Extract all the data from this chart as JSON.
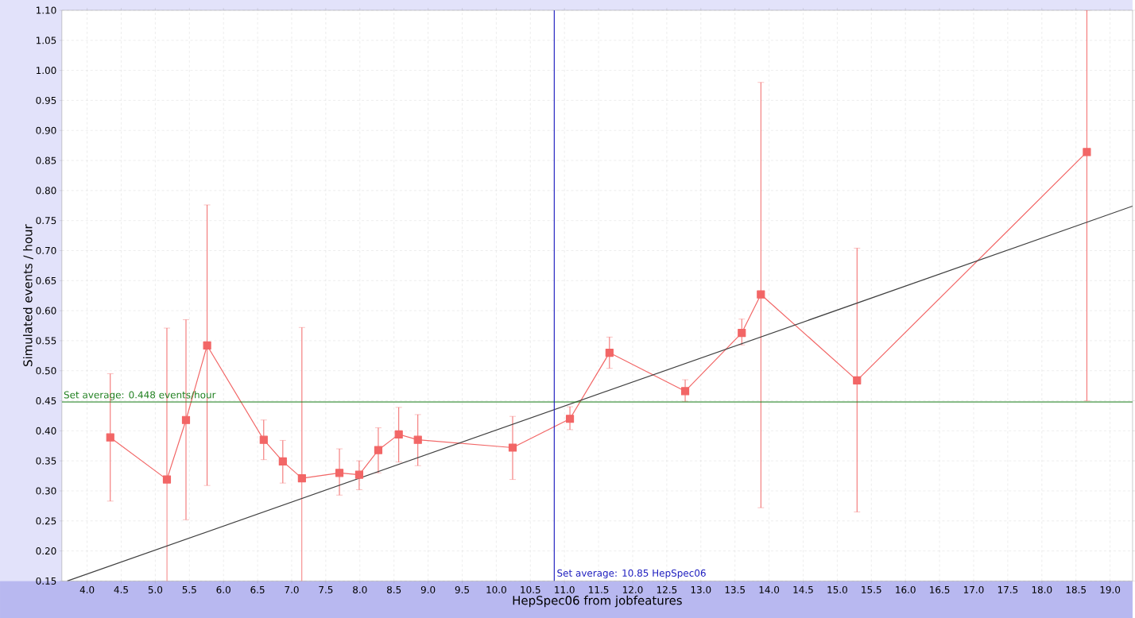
{
  "chart_data": {
    "type": "line",
    "xlabel": "HepSpec06 from jobfeatures",
    "ylabel": "Simulated events / hour",
    "xlim": [
      3.63,
      19.33
    ],
    "ylim": [
      0.15,
      1.1
    ],
    "xticks": [
      {
        "value": 4.0,
        "label": "4.0"
      },
      {
        "value": 4.5,
        "label": "4.5"
      },
      {
        "value": 5.0,
        "label": "5.0"
      },
      {
        "value": 5.5,
        "label": "5.5"
      },
      {
        "value": 6.0,
        "label": "6.0"
      },
      {
        "value": 6.5,
        "label": "6.5"
      },
      {
        "value": 7.0,
        "label": "7.0"
      },
      {
        "value": 7.5,
        "label": "7.5"
      },
      {
        "value": 8.0,
        "label": "8.0"
      },
      {
        "value": 8.5,
        "label": "8.5"
      },
      {
        "value": 9.0,
        "label": "9.0"
      },
      {
        "value": 9.5,
        "label": "9.5"
      },
      {
        "value": 10.0,
        "label": "10.0"
      },
      {
        "value": 10.5,
        "label": "10.5"
      },
      {
        "value": 11.0,
        "label": "11.0"
      },
      {
        "value": 11.5,
        "label": "11.5"
      },
      {
        "value": 12.0,
        "label": "12.0"
      },
      {
        "value": 12.5,
        "label": "12.5"
      },
      {
        "value": 13.0,
        "label": "13.0"
      },
      {
        "value": 13.5,
        "label": "13.5"
      },
      {
        "value": 14.0,
        "label": "14.0"
      },
      {
        "value": 14.5,
        "label": "14.5"
      },
      {
        "value": 15.0,
        "label": "15.0"
      },
      {
        "value": 15.5,
        "label": "15.5"
      },
      {
        "value": 16.0,
        "label": "16.0"
      },
      {
        "value": 16.5,
        "label": "16.5"
      },
      {
        "value": 17.0,
        "label": "17.0"
      },
      {
        "value": 17.5,
        "label": "17.5"
      },
      {
        "value": 18.0,
        "label": "18.0"
      },
      {
        "value": 18.5,
        "label": "18.5"
      },
      {
        "value": 19.0,
        "label": "19.0"
      }
    ],
    "yticks": [
      {
        "value": 0.15,
        "label": "0.15"
      },
      {
        "value": 0.2,
        "label": "0.20"
      },
      {
        "value": 0.25,
        "label": "0.25"
      },
      {
        "value": 0.3,
        "label": "0.30"
      },
      {
        "value": 0.35,
        "label": "0.35"
      },
      {
        "value": 0.4,
        "label": "0.40"
      },
      {
        "value": 0.45,
        "label": "0.45"
      },
      {
        "value": 0.5,
        "label": "0.50"
      },
      {
        "value": 0.55,
        "label": "0.55"
      },
      {
        "value": 0.6,
        "label": "0.60"
      },
      {
        "value": 0.65,
        "label": "0.65"
      },
      {
        "value": 0.7,
        "label": "0.70"
      },
      {
        "value": 0.75,
        "label": "0.75"
      },
      {
        "value": 0.8,
        "label": "0.80"
      },
      {
        "value": 0.85,
        "label": "0.85"
      },
      {
        "value": 0.9,
        "label": "0.90"
      },
      {
        "value": 0.95,
        "label": "0.95"
      },
      {
        "value": 1.0,
        "label": "1.00"
      },
      {
        "value": 1.05,
        "label": "1.05"
      },
      {
        "value": 1.1,
        "label": "1.10"
      }
    ],
    "grid": true,
    "marker": "square",
    "series": [
      {
        "color": "#f26666",
        "x": [
          4.34,
          5.17,
          5.45,
          5.76,
          6.59,
          6.87,
          7.15,
          7.7,
          7.99,
          8.27,
          8.57,
          8.85,
          10.24,
          11.08,
          11.66,
          12.77,
          13.6,
          13.88,
          15.29,
          18.66
        ],
        "values": [
          0.389,
          0.319,
          0.418,
          0.542,
          0.385,
          0.349,
          0.321,
          0.33,
          0.327,
          0.368,
          0.394,
          0.385,
          0.372,
          0.42,
          0.53,
          0.466,
          0.563,
          0.627,
          0.484,
          0.864
        ],
        "errors": [
          [
            0.283,
            0.495
          ],
          [
            0.15,
            0.571
          ],
          [
            0.252,
            0.585
          ],
          [
            0.309,
            0.776
          ],
          [
            0.352,
            0.418
          ],
          [
            0.313,
            0.384
          ],
          [
            0.15,
            0.572
          ],
          [
            0.293,
            0.37
          ],
          [
            0.302,
            0.35
          ],
          [
            0.33,
            0.405
          ],
          [
            0.348,
            0.439
          ],
          [
            0.342,
            0.427
          ],
          [
            0.319,
            0.424
          ],
          [
            0.402,
            0.44
          ],
          [
            0.504,
            0.556
          ],
          [
            0.449,
            0.485
          ],
          [
            0.543,
            0.586
          ],
          [
            0.272,
            0.98
          ],
          [
            0.265,
            0.704
          ],
          [
            0.45,
            1.1
          ]
        ]
      },
      {
        "color": "#404040",
        "marker": "none",
        "x": [
          3.71,
          19.33
        ],
        "values": [
          0.15,
          0.774
        ]
      }
    ],
    "ref_lines": [
      {
        "axis": "y",
        "value": 0.448,
        "label": "Set average: 0.448 events/hour",
        "color": "#208020"
      },
      {
        "axis": "x",
        "value": 10.85,
        "label": "Set average: 10.85 HepSpec06",
        "color": "#2020c0"
      }
    ]
  }
}
